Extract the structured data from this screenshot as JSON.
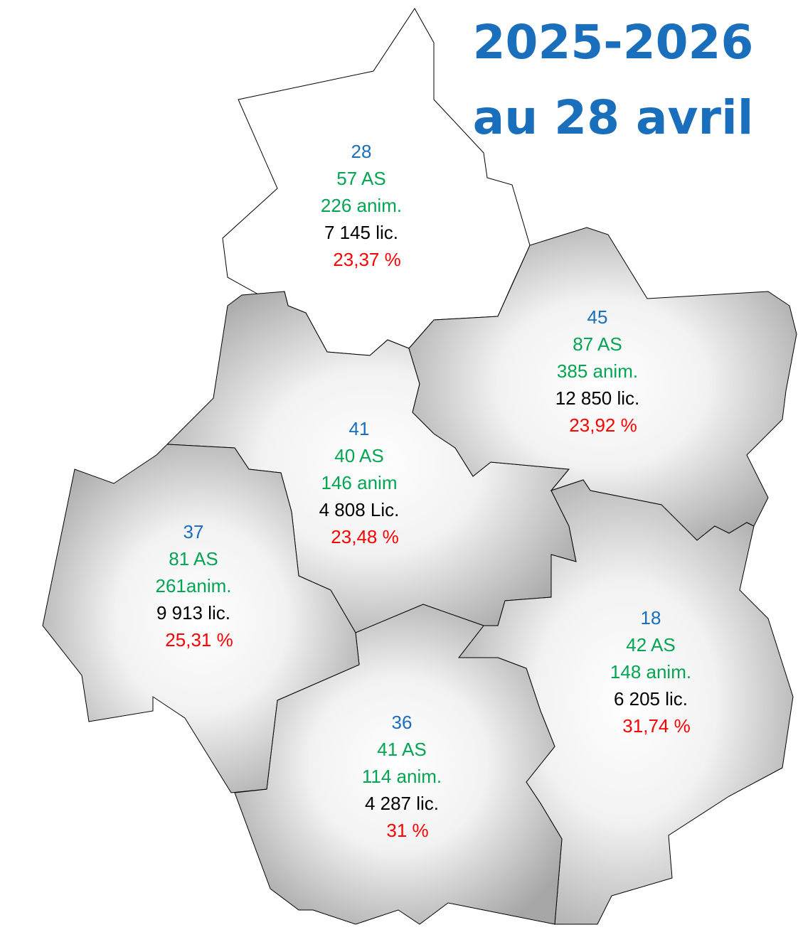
{
  "title": [
    "2025-2026",
    "au 28 avril"
  ],
  "departments": [
    {
      "code": "28",
      "as": "57 AS",
      "anim": "226 anim.",
      "lic": "7 145 lic.",
      "pct": "23,37 %"
    },
    {
      "code": "45",
      "as": "87 AS",
      "anim": "385 anim.",
      "lic": "12 850 lic.",
      "pct": "23,92 %"
    },
    {
      "code": "41",
      "as": "40 AS",
      "anim": "146 anim",
      "lic": "4 808 Lic.",
      "pct": "23,48 %"
    },
    {
      "code": "37",
      "as": "81 AS",
      "anim": "261anim.",
      "lic": "9 913 lic.",
      "pct": "25,31 %"
    },
    {
      "code": "18",
      "as": "42 AS",
      "anim": "148 anim.",
      "lic": "6 205 lic.",
      "pct": "31,74 %"
    },
    {
      "code": "36",
      "as": "41 AS",
      "anim": "114 anim.",
      "lic": "4 287 lic.",
      "pct": "31 %"
    }
  ]
}
